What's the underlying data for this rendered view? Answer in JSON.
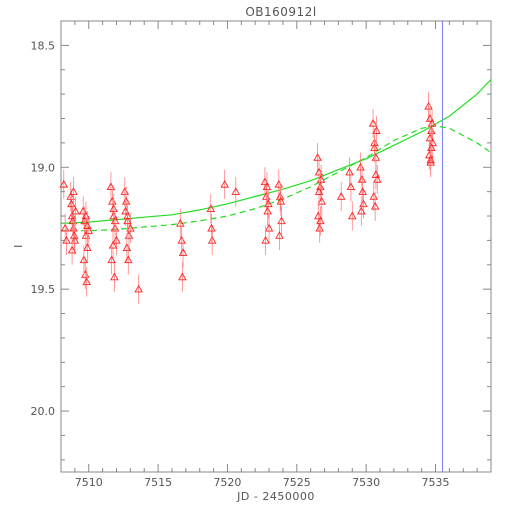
{
  "chart_data": {
    "type": "scatter",
    "title": "OB160912l",
    "xlabel": "JD - 2450000",
    "ylabel": "I",
    "xlim": [
      7508,
      7539
    ],
    "ylim": [
      20.25,
      18.4
    ],
    "y_inverted": true,
    "grid": false,
    "x_ticks": [
      7510,
      7515,
      7520,
      7525,
      7530,
      7535
    ],
    "y_ticks": [
      {
        "value": 18.5,
        "label": "18.5"
      },
      {
        "value": 19.0,
        "label": "19.0"
      },
      {
        "value": 19.5,
        "label": "19.5"
      },
      {
        "value": 20.0,
        "label": "20.0"
      }
    ],
    "vertical_line": {
      "x": 7535.5,
      "color": "#7a7aff"
    },
    "colors": {
      "points": "#ff2020",
      "errorbars": "#ff8080",
      "model": "#22dd22",
      "axes": "#888888",
      "text": "#555555"
    },
    "series": [
      {
        "kind": "points",
        "marker": "triangle-open",
        "x": [
          7508.2,
          7508.3,
          7508.4,
          7508.7,
          7508.8,
          7508.9,
          7509.0,
          7508.75,
          7508.85,
          7508.95,
          7509.05,
          7508.8,
          7508.9,
          7509.6,
          7509.7,
          7509.8,
          7509.9,
          7510.0,
          7509.75,
          7509.85,
          7509.65,
          7509.8,
          7509.9,
          7511.6,
          7511.7,
          7511.8,
          7511.9,
          7512.0,
          7511.75,
          7511.85,
          7511.65,
          7511.8,
          7511.9,
          7512.6,
          7512.7,
          7512.8,
          7512.9,
          7513.0,
          7512.75,
          7512.85,
          7512.65,
          7512.8,
          7513.6,
          7516.6,
          7516.7,
          7516.8,
          7516.75,
          7518.8,
          7518.9,
          7518.85,
          7519.8,
          7520.6,
          7522.7,
          7522.8,
          7522.9,
          7523.0,
          7522.75,
          7522.85,
          7522.95,
          7523.7,
          7523.8,
          7523.9,
          7523.75,
          7523.85,
          7526.5,
          7526.6,
          7526.7,
          7526.8,
          7526.55,
          7526.65,
          7526.75,
          7526.6,
          7526.7,
          7528.2,
          7528.8,
          7528.9,
          7529.0,
          7529.6,
          7529.7,
          7529.8,
          7529.65,
          7529.75,
          7530.5,
          7530.6,
          7530.7,
          7530.8,
          7530.55,
          7530.65,
          7530.75,
          7530.6,
          7530.7,
          7534.5,
          7534.6,
          7534.7,
          7534.8,
          7534.55,
          7534.65,
          7534.75,
          7534.6,
          7534.7,
          7534.65
        ],
        "y": [
          19.07,
          19.25,
          19.3,
          19.12,
          19.2,
          19.25,
          19.3,
          19.15,
          19.22,
          19.28,
          19.18,
          19.34,
          19.1,
          19.18,
          19.22,
          19.28,
          19.33,
          19.26,
          19.44,
          19.47,
          19.38,
          19.2,
          19.24,
          19.08,
          19.14,
          19.2,
          19.25,
          19.3,
          19.32,
          19.45,
          19.38,
          19.17,
          19.22,
          19.1,
          19.14,
          19.2,
          19.28,
          19.25,
          19.33,
          19.38,
          19.18,
          19.22,
          19.5,
          19.23,
          19.3,
          19.35,
          19.45,
          19.17,
          19.3,
          19.25,
          19.07,
          19.1,
          19.06,
          19.12,
          19.18,
          19.25,
          19.3,
          19.08,
          19.15,
          19.07,
          19.12,
          19.22,
          19.28,
          19.14,
          18.96,
          19.02,
          19.08,
          19.14,
          19.2,
          19.25,
          19.05,
          19.1,
          19.22,
          19.12,
          19.02,
          19.08,
          19.2,
          19.0,
          19.05,
          19.15,
          19.18,
          19.1,
          18.82,
          18.9,
          18.96,
          19.05,
          19.12,
          19.16,
          18.85,
          18.92,
          19.03,
          18.75,
          18.8,
          18.85,
          18.9,
          18.95,
          18.98,
          18.82,
          18.88,
          18.92,
          18.97
        ],
        "error": 0.06
      },
      {
        "kind": "line",
        "style": "solid",
        "x": [
          7508,
          7510,
          7512,
          7514,
          7516,
          7518,
          7520,
          7522,
          7524,
          7526,
          7528,
          7530,
          7532,
          7534,
          7536,
          7538,
          7539
        ],
        "y": [
          19.23,
          19.225,
          19.215,
          19.205,
          19.195,
          19.175,
          19.15,
          19.12,
          19.09,
          19.055,
          19.01,
          18.965,
          18.91,
          18.855,
          18.79,
          18.7,
          18.64
        ]
      },
      {
        "kind": "line",
        "style": "dashed",
        "x": [
          7508,
          7510,
          7512,
          7514,
          7516,
          7518,
          7520,
          7522,
          7524,
          7526,
          7528,
          7530,
          7532,
          7534,
          7535,
          7536,
          7538,
          7539
        ],
        "y": [
          19.26,
          19.26,
          19.255,
          19.245,
          19.235,
          19.22,
          19.2,
          19.17,
          19.13,
          19.08,
          19.02,
          18.96,
          18.89,
          18.84,
          18.83,
          18.84,
          18.9,
          18.94
        ]
      }
    ]
  }
}
